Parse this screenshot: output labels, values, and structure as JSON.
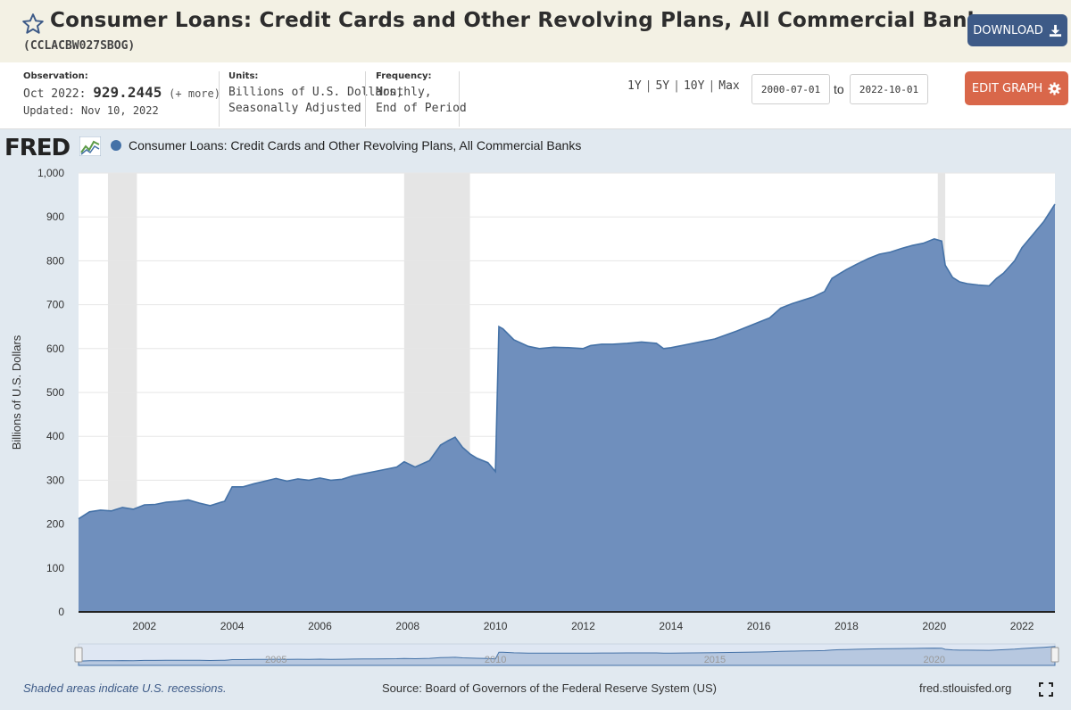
{
  "header": {
    "title": "Consumer Loans: Credit Cards and Other Revolving Plans, All Commercial Banks",
    "series_id": "(CCLACBW027SBOG)",
    "download_label": "DOWNLOAD",
    "star_icon": "star-outline-icon",
    "download_icon": "download-icon"
  },
  "meta": {
    "observation_label": "Observation:",
    "observation_period": "Oct 2022:",
    "observation_value": "929.2445",
    "observation_more": "(+ more)",
    "updated": "Updated: Nov 10, 2022",
    "units_label": "Units:",
    "units_line1": "Billions of U.S. Dollars,",
    "units_line2": "Seasonally Adjusted",
    "frequency_label": "Frequency:",
    "frequency_line1": "Monthly,",
    "frequency_line2": "End of Period",
    "range_1y": "1Y",
    "range_5y": "5Y",
    "range_10y": "10Y",
    "range_max": "Max",
    "range_sep": "|",
    "start_date": "2000-07-01",
    "to_label": "to",
    "end_date": "2022-10-01",
    "edit_label": "EDIT GRAPH",
    "edit_icon": "gear-icon"
  },
  "colors": {
    "series_fill": "#6f8fbd",
    "series_line": "#4572a7",
    "recession": "#e5e5e5",
    "download_bg": "#3d5a87",
    "edit_bg": "#d9674a"
  },
  "chart_panel": {
    "logo_text": "FRED",
    "logo_icon": "fred-chart-icon",
    "legend": "Consumer Loans: Credit Cards and Other Revolving Plans, All Commercial Banks",
    "footer_note": "Shaded areas indicate U.S. recessions.",
    "source": "Source: Board of Governors of the Federal Reserve System (US)",
    "site": "fred.stlouisfed.org",
    "fullscreen_icon": "fullscreen-icon"
  },
  "chart_data": {
    "type": "area",
    "ylabel": "Billions of U.S. Dollars",
    "xlabel": "",
    "ylim": [
      0,
      1000
    ],
    "xlim": [
      2000.5,
      2022.75
    ],
    "yticks": [
      0,
      100,
      200,
      300,
      400,
      500,
      600,
      700,
      800,
      900,
      1000
    ],
    "ytick_labels": [
      "0",
      "100",
      "200",
      "300",
      "400",
      "500",
      "600",
      "700",
      "800",
      "900",
      "1,000"
    ],
    "xticks": [
      2002,
      2004,
      2006,
      2008,
      2010,
      2012,
      2014,
      2016,
      2018,
      2020,
      2022
    ],
    "xtick_labels": [
      "2002",
      "2004",
      "2006",
      "2008",
      "2010",
      "2012",
      "2014",
      "2016",
      "2018",
      "2020",
      "2022"
    ],
    "grid": true,
    "recessions": [
      [
        2001.17,
        2001.83
      ],
      [
        2007.92,
        2009.42
      ],
      [
        2020.08,
        2020.25
      ]
    ],
    "navigator_labels": [
      {
        "x": 2005,
        "label": "2005"
      },
      {
        "x": 2010,
        "label": "2010"
      },
      {
        "x": 2015,
        "label": "2015"
      },
      {
        "x": 2020,
        "label": "2020"
      }
    ],
    "series": [
      {
        "name": "Consumer Loans: Credit Cards and Other Revolving Plans, All Commercial Banks",
        "x": [
          2000.5,
          2000.75,
          2001.0,
          2001.25,
          2001.5,
          2001.75,
          2002.0,
          2002.25,
          2002.5,
          2002.75,
          2003.0,
          2003.25,
          2003.5,
          2003.75,
          2003.83,
          2004.0,
          2004.25,
          2004.5,
          2004.75,
          2005.0,
          2005.25,
          2005.5,
          2005.75,
          2006.0,
          2006.25,
          2006.5,
          2006.75,
          2007.0,
          2007.25,
          2007.5,
          2007.75,
          2007.92,
          2008.17,
          2008.5,
          2008.75,
          2008.92,
          2009.08,
          2009.25,
          2009.42,
          2009.58,
          2009.83,
          2010.0,
          2010.08,
          2010.17,
          2010.42,
          2010.75,
          2011.0,
          2011.33,
          2011.67,
          2012.0,
          2012.17,
          2012.42,
          2012.67,
          2013.0,
          2013.33,
          2013.67,
          2013.83,
          2014.0,
          2014.5,
          2015.0,
          2015.5,
          2016.0,
          2016.25,
          2016.5,
          2016.75,
          2017.0,
          2017.25,
          2017.5,
          2017.67,
          2017.83,
          2018.0,
          2018.25,
          2018.5,
          2018.75,
          2019.0,
          2019.25,
          2019.5,
          2019.75,
          2020.0,
          2020.17,
          2020.25,
          2020.42,
          2020.58,
          2020.75,
          2021.0,
          2021.25,
          2021.42,
          2021.58,
          2021.83,
          2022.0,
          2022.25,
          2022.5,
          2022.75
        ],
        "values": [
          212,
          228,
          232,
          230,
          238,
          234,
          244,
          245,
          250,
          252,
          255,
          248,
          242,
          250,
          252,
          285,
          285,
          292,
          298,
          304,
          298,
          303,
          300,
          305,
          300,
          302,
          310,
          315,
          320,
          325,
          330,
          342,
          330,
          345,
          380,
          390,
          398,
          375,
          360,
          350,
          340,
          320,
          650,
          645,
          620,
          605,
          600,
          603,
          602,
          600,
          607,
          610,
          610,
          612,
          615,
          612,
          600,
          602,
          612,
          622,
          640,
          660,
          670,
          692,
          702,
          710,
          718,
          730,
          760,
          770,
          780,
          793,
          805,
          815,
          820,
          828,
          835,
          840,
          850,
          845,
          790,
          762,
          752,
          748,
          745,
          743,
          760,
          772,
          800,
          830,
          860,
          890,
          929
        ]
      }
    ]
  }
}
